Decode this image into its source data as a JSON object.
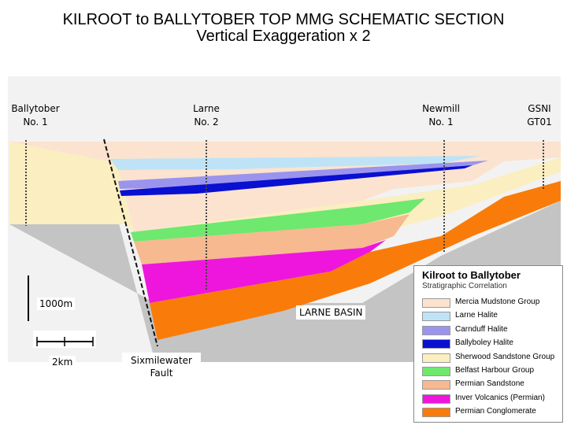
{
  "title_line1": "KILROOT to BALLYTOBER TOP MMG SCHEMATIC SECTION",
  "title_line2": "Vertical Exaggeration x 2",
  "wells": [
    {
      "line1": "Ballytober",
      "line2": "No. 1"
    },
    {
      "line1": "Larne",
      "line2": "No. 2"
    },
    {
      "line1": "Newmill",
      "line2": "No. 1"
    },
    {
      "line1": "GSNI",
      "line2": "GT01"
    }
  ],
  "vertical_scale_label": "1000m",
  "horizontal_scale_label": "2km",
  "basin_label": "LARNE BASIN",
  "fault_label_line1": "Sixmilewater",
  "fault_label_line2": "Fault",
  "legend": {
    "title": "Kilroot to Ballytober",
    "subtitle": "Stratigraphic Correlation",
    "items": [
      {
        "label": "Mercia Mudstone Group",
        "color": "#fbe3cf"
      },
      {
        "label": "Larne Halite",
        "color": "#bfe3f6"
      },
      {
        "label": "Carnduff Halite",
        "color": "#9a94ee"
      },
      {
        "label": "Ballyboley Halite",
        "color": "#0a10d0"
      },
      {
        "label": "Sherwood Sandstone Group",
        "color": "#fbeec0"
      },
      {
        "label": "Belfast Harbour Group",
        "color": "#6ee86e"
      },
      {
        "label": "Permian Sandstone",
        "color": "#f7b98f"
      },
      {
        "label": "Inver Volcanics (Permian)",
        "color": "#ee16dc"
      },
      {
        "label": "Permian Conglomerate",
        "color": "#f97c0a"
      }
    ]
  },
  "colors": {
    "basement": "#c4c4c4",
    "background_sky": "#f2f2f2"
  }
}
